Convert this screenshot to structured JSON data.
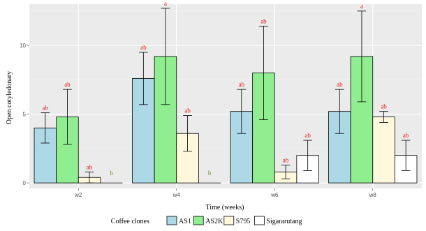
{
  "chart_data": {
    "type": "bar",
    "title": "",
    "xlabel": "Time (weeks)",
    "ylabel": "Open cotyledonary",
    "ylim": [
      -0.4,
      13
    ],
    "yticks": [
      0,
      5,
      10
    ],
    "grid": true,
    "legend_position": "bottom",
    "legend_title": "Coffee clones",
    "facets": [
      "w2",
      "w4",
      "w6",
      "w8"
    ],
    "series": [
      {
        "name": "AS1",
        "color": "#add8e6",
        "values": [
          4.0,
          7.6,
          5.2,
          5.2
        ],
        "error": [
          1.1,
          1.9,
          1.6,
          1.6
        ],
        "labels": [
          "ab",
          "ab",
          "ab",
          "ab"
        ]
      },
      {
        "name": "AS2K",
        "color": "#90ee90",
        "values": [
          4.8,
          9.2,
          8.0,
          9.2
        ],
        "error": [
          2.0,
          3.5,
          3.4,
          3.3
        ],
        "labels": [
          "ab",
          "a",
          "ab",
          "a"
        ]
      },
      {
        "name": "S795",
        "color": "#fff8dc",
        "values": [
          0.4,
          3.6,
          0.8,
          4.8
        ],
        "error": [
          0.4,
          1.3,
          0.5,
          0.4
        ],
        "labels": [
          "ab",
          "ab",
          "ab",
          "ab"
        ]
      },
      {
        "name": "Sigararutang",
        "color": "#ffffff",
        "values": [
          0,
          0,
          2.0,
          2.0
        ],
        "error": [
          0,
          0,
          1.1,
          1.1
        ],
        "labels": [
          "b",
          "b",
          "ab",
          "ab"
        ]
      }
    ],
    "label_colors": {
      "default": "#e41a1c",
      "b": "#6b8e23"
    }
  }
}
